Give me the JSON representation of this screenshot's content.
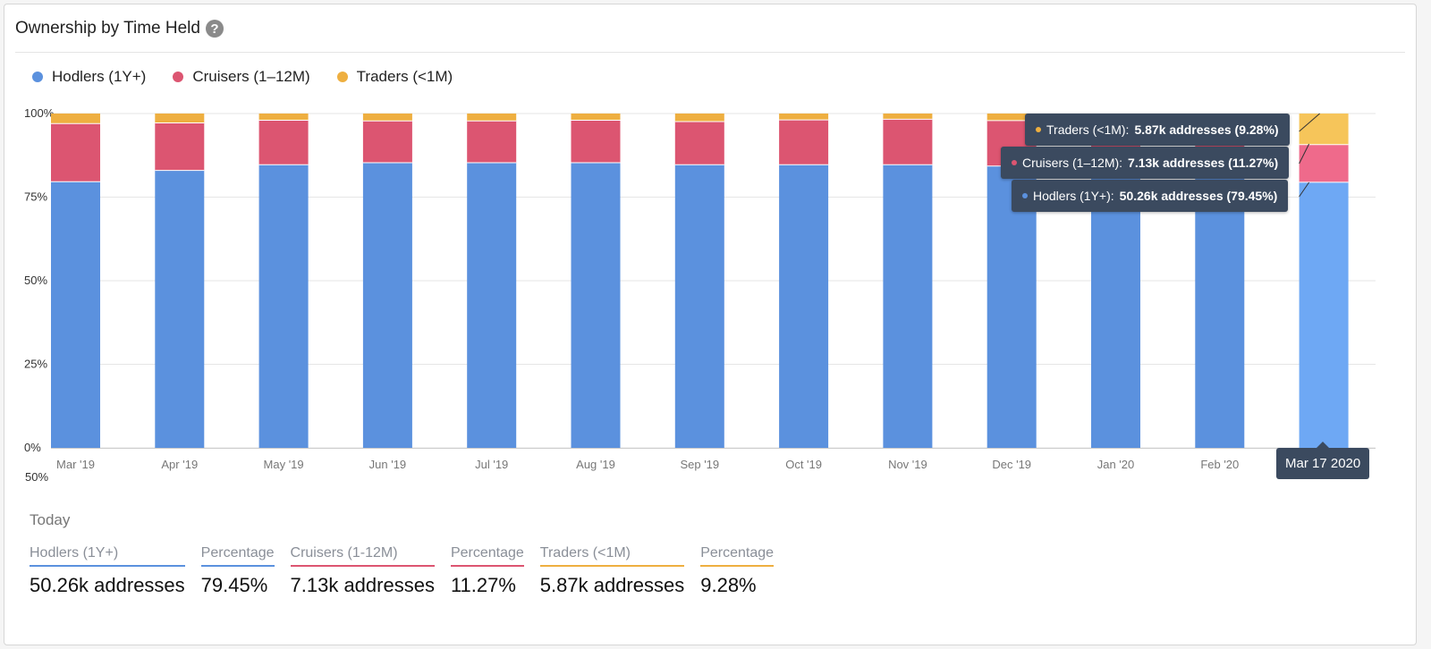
{
  "header": {
    "title": "Ownership by Time Held",
    "help_icon": "question-circle-icon"
  },
  "colors": {
    "hodlers": "#5b91de",
    "cruisers": "#dc5571",
    "traders": "#eeaf40",
    "hodlers_hl": "#6ea8f4",
    "cruisers_hl": "#ef6a8b",
    "traders_hl": "#f6c55a",
    "tooltip_bg": "#3b4a5f"
  },
  "legend": [
    {
      "label": "Hodlers (1Y+)",
      "color": "#5b91de"
    },
    {
      "label": "Cruisers (1–12M)",
      "color": "#dc5571"
    },
    {
      "label": "Traders (<1M)",
      "color": "#eeaf40"
    }
  ],
  "chart_data": {
    "type": "bar",
    "stacked": true,
    "categories": [
      "Mar '19",
      "Apr '19",
      "May '19",
      "Jun '19",
      "Jul '19",
      "Aug '19",
      "Sep '19",
      "Oct '19",
      "Nov '19",
      "Dec '19",
      "Jan '20",
      "Feb '20",
      "Mar 17 2020"
    ],
    "x_tick_labels": [
      "Mar '19",
      "Apr '19",
      "May '19",
      "Jun '19",
      "Jul '19",
      "Aug '19",
      "Sep '19",
      "Oct '19",
      "Nov '19",
      "Dec '19",
      "Jan '20",
      "Feb '20"
    ],
    "series": [
      {
        "name": "Hodlers (1Y+)",
        "values": [
          79.6,
          83.0,
          84.7,
          85.3,
          85.3,
          85.3,
          84.7,
          84.7,
          84.7,
          84.3,
          84.0,
          82.0,
          79.45
        ]
      },
      {
        "name": "Cruisers (1–12M)",
        "values": [
          17.4,
          14.2,
          13.3,
          12.5,
          12.5,
          12.7,
          12.9,
          13.4,
          13.6,
          13.6,
          13.5,
          14.5,
          11.27
        ]
      },
      {
        "name": "Traders (<1M)",
        "values": [
          3.0,
          2.8,
          2.0,
          2.2,
          2.2,
          2.0,
          2.4,
          1.9,
          1.7,
          2.1,
          2.5,
          3.5,
          9.28
        ]
      }
    ],
    "y_ticks": [
      "0%",
      "25%",
      "50%",
      "75%",
      "100%"
    ],
    "ylim": [
      0,
      100
    ],
    "grid": true,
    "legend_position": "top-left",
    "highlighted_index": 12
  },
  "tooltip": {
    "date": "Mar 17 2020",
    "traders": {
      "name": "Traders (<1M):",
      "value": "5.87k addresses (9.28%)"
    },
    "cruisers": {
      "name": "Cruisers (1–12M):",
      "value": "7.13k addresses (11.27%)"
    },
    "hodlers": {
      "name": "Hodlers (1Y+):",
      "value": "50.26k addresses (79.45%)"
    }
  },
  "stray_label": "50%",
  "today": {
    "label": "Today",
    "columns": [
      {
        "head": "Hodlers (1Y+)",
        "value": "50.26k addresses",
        "color": "#5b91de"
      },
      {
        "head": "Percentage",
        "value": "79.45%",
        "color": "#5b91de"
      },
      {
        "head": "Cruisers (1-12M)",
        "value": "7.13k addresses",
        "color": "#dc5571"
      },
      {
        "head": "Percentage",
        "value": "11.27%",
        "color": "#dc5571"
      },
      {
        "head": "Traders (<1M)",
        "value": "5.87k addresses",
        "color": "#eeaf40"
      },
      {
        "head": "Percentage",
        "value": "9.28%",
        "color": "#eeaf40"
      }
    ]
  }
}
